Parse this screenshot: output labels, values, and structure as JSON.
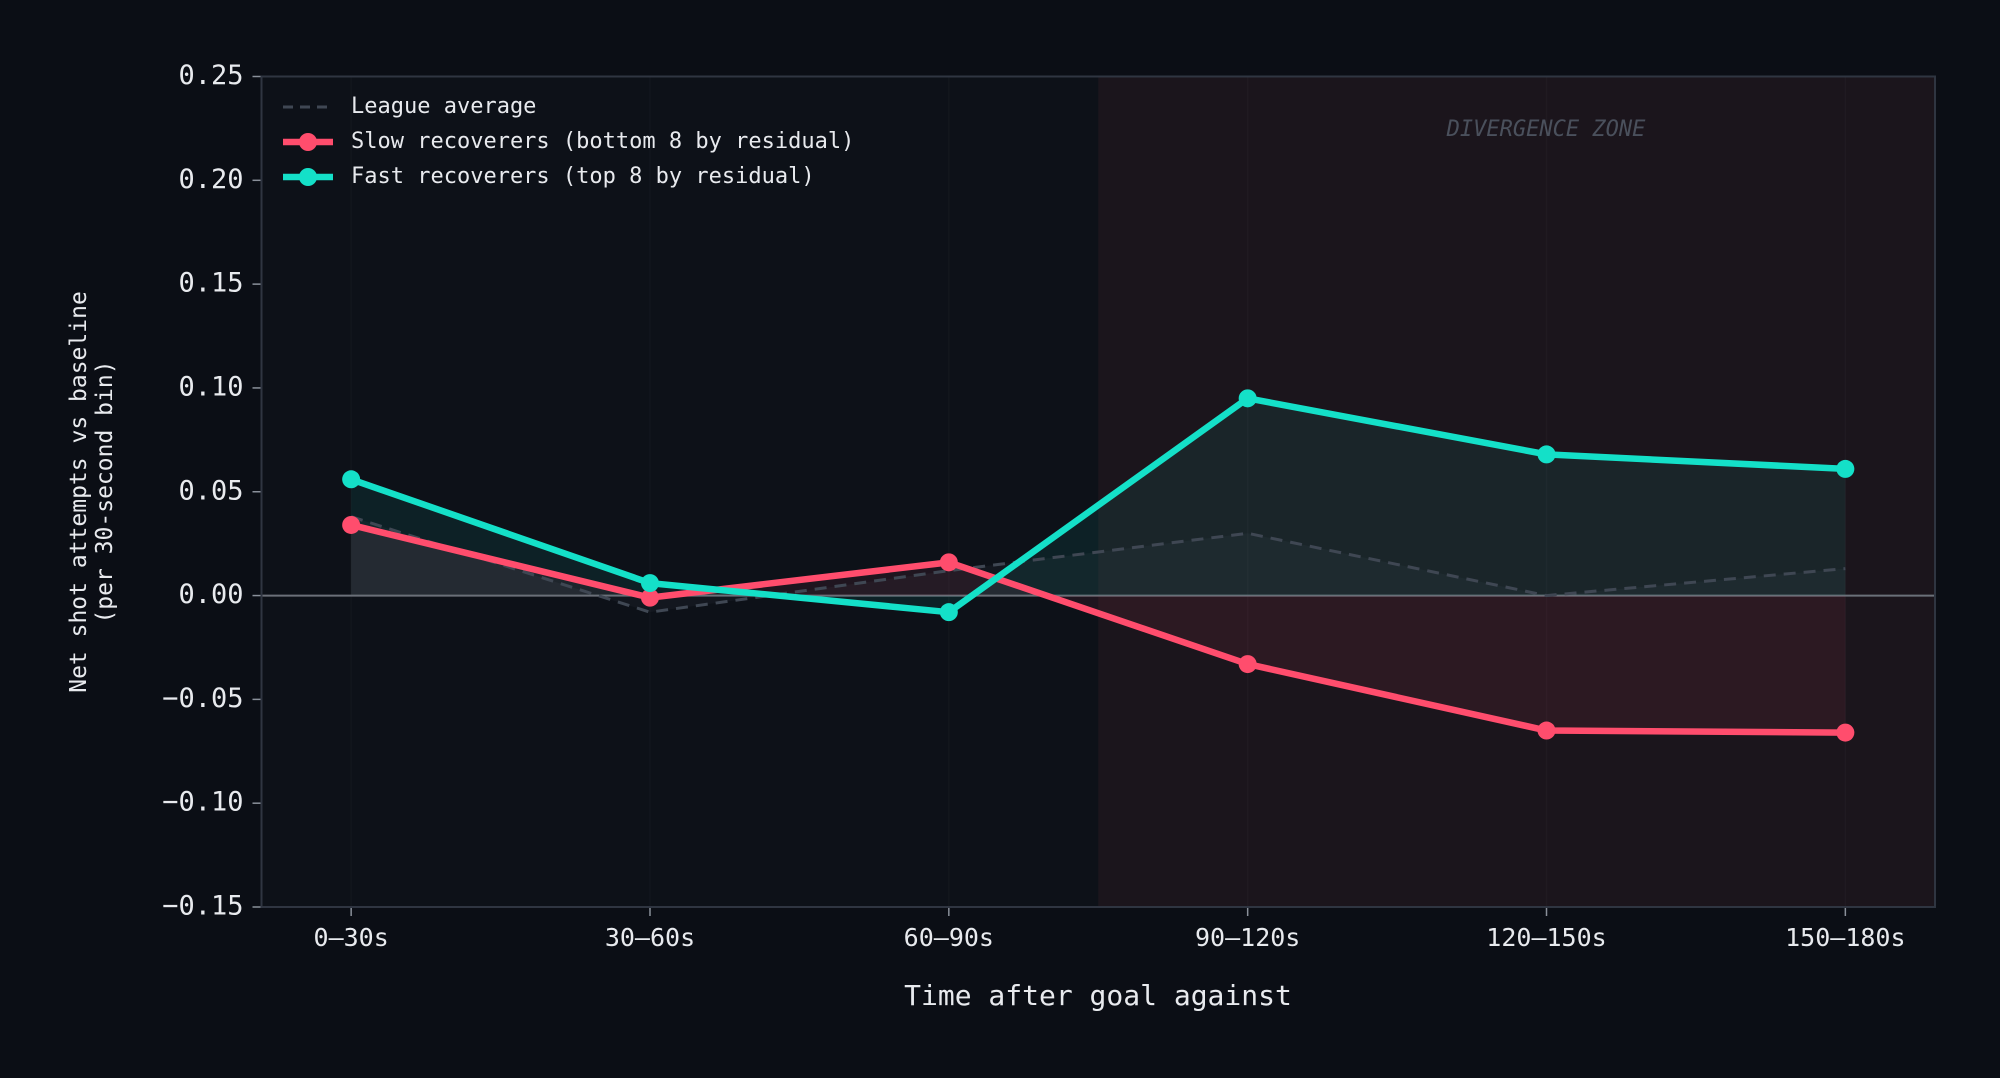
{
  "chart_data": {
    "type": "line",
    "x_label": "Time after goal against",
    "y_label": "Net shot attempts vs baseline\n(per 30-second bin)",
    "categories": [
      "0–30s",
      "30–60s",
      "60–90s",
      "90–120s",
      "120–150s",
      "150–180s"
    ],
    "series": [
      {
        "name": "League average",
        "color": "#3f4753",
        "style": "dashed",
        "values": [
          0.038,
          -0.008,
          0.012,
          0.03,
          0.0,
          0.013
        ]
      },
      {
        "name": "Slow recoverers (bottom 8 by residual)",
        "color": "#ff4d6d",
        "style": "solid",
        "values": [
          0.034,
          -0.001,
          0.016,
          -0.033,
          -0.065,
          -0.066
        ]
      },
      {
        "name": "Fast recoverers (top 8 by residual)",
        "color": "#14e0c8",
        "style": "solid",
        "values": [
          0.056,
          0.006,
          -0.008,
          0.095,
          0.068,
          0.061
        ]
      }
    ],
    "ylim": [
      -0.15,
      0.25
    ],
    "yticks": [
      {
        "value": -0.15,
        "label": "−0.15"
      },
      {
        "value": -0.1,
        "label": "−0.10"
      },
      {
        "value": -0.05,
        "label": "−0.05"
      },
      {
        "value": 0,
        "label": "0.00"
      },
      0.05,
      {
        "value": 0.1,
        "label": "0.10"
      },
      0.15,
      {
        "value": 0.2,
        "label": "0.20"
      },
      0.25
    ],
    "reference_line": 0,
    "shaded_region": {
      "label": "DIVERGENCE ZONE",
      "from": 2.5
    },
    "legend": "upper left"
  }
}
